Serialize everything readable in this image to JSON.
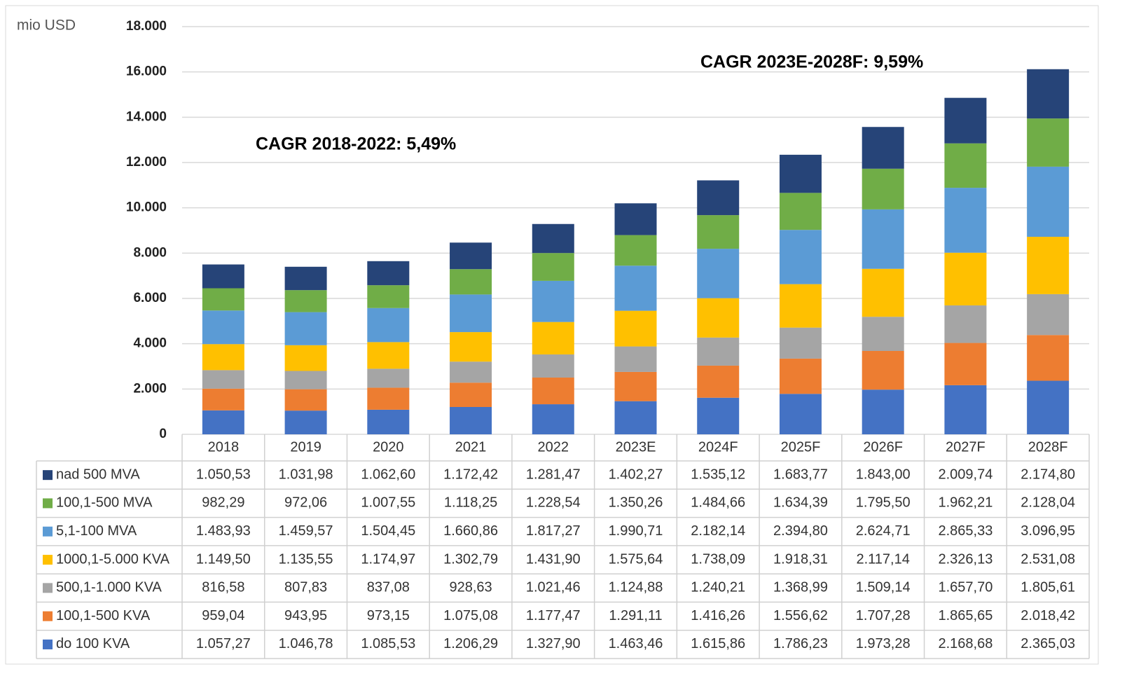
{
  "chart_data": {
    "type": "stacked-bar",
    "y_label": "mio USD",
    "annotations": [
      "CAGR 2018-2022: 5,49%",
      "CAGR 2023E-2028F: 9,59%"
    ],
    "categories": [
      "2018",
      "2019",
      "2020",
      "2021",
      "2022",
      "2023E",
      "2024F",
      "2025F",
      "2026F",
      "2027F",
      "2028F"
    ],
    "ylim": [
      0,
      18000
    ],
    "yticks": [
      0,
      {
        "value": 2000,
        "label": "2.000"
      },
      {
        "value": 4000,
        "label": "4.000"
      },
      {
        "value": 6000,
        "label": "6.000"
      },
      {
        "value": 8000,
        "label": "8.000"
      },
      {
        "value": 10000,
        "label": "10.000"
      },
      {
        "value": 12000,
        "label": "12.000"
      },
      {
        "value": 14000,
        "label": "14.000"
      },
      {
        "value": 16000,
        "label": "16.000"
      },
      {
        "value": 18000,
        "label": "18.000"
      }
    ],
    "grid": true,
    "series": [
      {
        "name": "do 100 KVA",
        "color": "#4472c4",
        "values": [
          1057.27,
          1046.78,
          1085.53,
          1206.29,
          1327.9,
          1463.46,
          1615.86,
          1786.23,
          1973.28,
          2168.68,
          2365.03
        ],
        "value_labels": [
          "1.057,27",
          "1.046,78",
          "1.085,53",
          "1.206,29",
          "1.327,90",
          "1.463,46",
          "1.615,86",
          "1.786,23",
          "1.973,28",
          "2.168,68",
          "2.365,03"
        ]
      },
      {
        "name": "100,1-500 KVA",
        "color": "#ed7d31",
        "values": [
          959.04,
          943.95,
          973.15,
          1075.08,
          1177.47,
          1291.11,
          1416.26,
          1556.62,
          1707.28,
          1865.65,
          2018.42
        ],
        "value_labels": [
          "959,04",
          "943,95",
          "973,15",
          "1.075,08",
          "1.177,47",
          "1.291,11",
          "1.416,26",
          "1.556,62",
          "1.707,28",
          "1.865,65",
          "2.018,42"
        ]
      },
      {
        "name": "500,1-1.000 KVA",
        "color": "#a5a5a5",
        "values": [
          816.58,
          807.83,
          837.08,
          928.63,
          1021.46,
          1124.88,
          1240.21,
          1368.99,
          1509.14,
          1657.7,
          1805.61
        ],
        "value_labels": [
          "816,58",
          "807,83",
          "837,08",
          "928,63",
          "1.021,46",
          "1.124,88",
          "1.240,21",
          "1.368,99",
          "1.509,14",
          "1.657,70",
          "1.805,61"
        ]
      },
      {
        "name": "1000,1-5.000 KVA",
        "color": "#ffc000",
        "values": [
          1149.5,
          1135.55,
          1174.97,
          1302.79,
          1431.9,
          1575.64,
          1738.09,
          1918.31,
          2117.14,
          2326.13,
          2531.08
        ],
        "value_labels": [
          "1.149,50",
          "1.135,55",
          "1.174,97",
          "1.302,79",
          "1.431,90",
          "1.575,64",
          "1.738,09",
          "1.918,31",
          "2.117,14",
          "2.326,13",
          "2.531,08"
        ]
      },
      {
        "name": "5,1-100 MVA",
        "color": "#5b9bd5",
        "values": [
          1483.93,
          1459.57,
          1504.45,
          1660.86,
          1817.27,
          1990.71,
          2182.14,
          2394.8,
          2624.71,
          2865.33,
          3096.95
        ],
        "value_labels": [
          "1.483,93",
          "1.459,57",
          "1.504,45",
          "1.660,86",
          "1.817,27",
          "1.990,71",
          "2.182,14",
          "2.394,80",
          "2.624,71",
          "2.865,33",
          "3.096,95"
        ]
      },
      {
        "name": "100,1-500 MVA",
        "color": "#70ad47",
        "values": [
          982.29,
          972.06,
          1007.55,
          1118.25,
          1228.54,
          1350.26,
          1484.66,
          1634.39,
          1795.5,
          1962.21,
          2128.04
        ],
        "value_labels": [
          "982,29",
          "972,06",
          "1.007,55",
          "1.118,25",
          "1.228,54",
          "1.350,26",
          "1.484,66",
          "1.634,39",
          "1.795,50",
          "1.962,21",
          "2.128,04"
        ]
      },
      {
        "name": "nad 500 MVA",
        "color": "#264478",
        "values": [
          1050.53,
          1031.98,
          1062.6,
          1172.42,
          1281.47,
          1402.27,
          1535.12,
          1683.77,
          1843.0,
          2009.74,
          2174.8
        ],
        "value_labels": [
          "1.050,53",
          "1.031,98",
          "1.062,60",
          "1.172,42",
          "1.281,47",
          "1.402,27",
          "1.535,12",
          "1.683,77",
          "1.843,00",
          "2.009,74",
          "2.174,80"
        ]
      }
    ]
  }
}
